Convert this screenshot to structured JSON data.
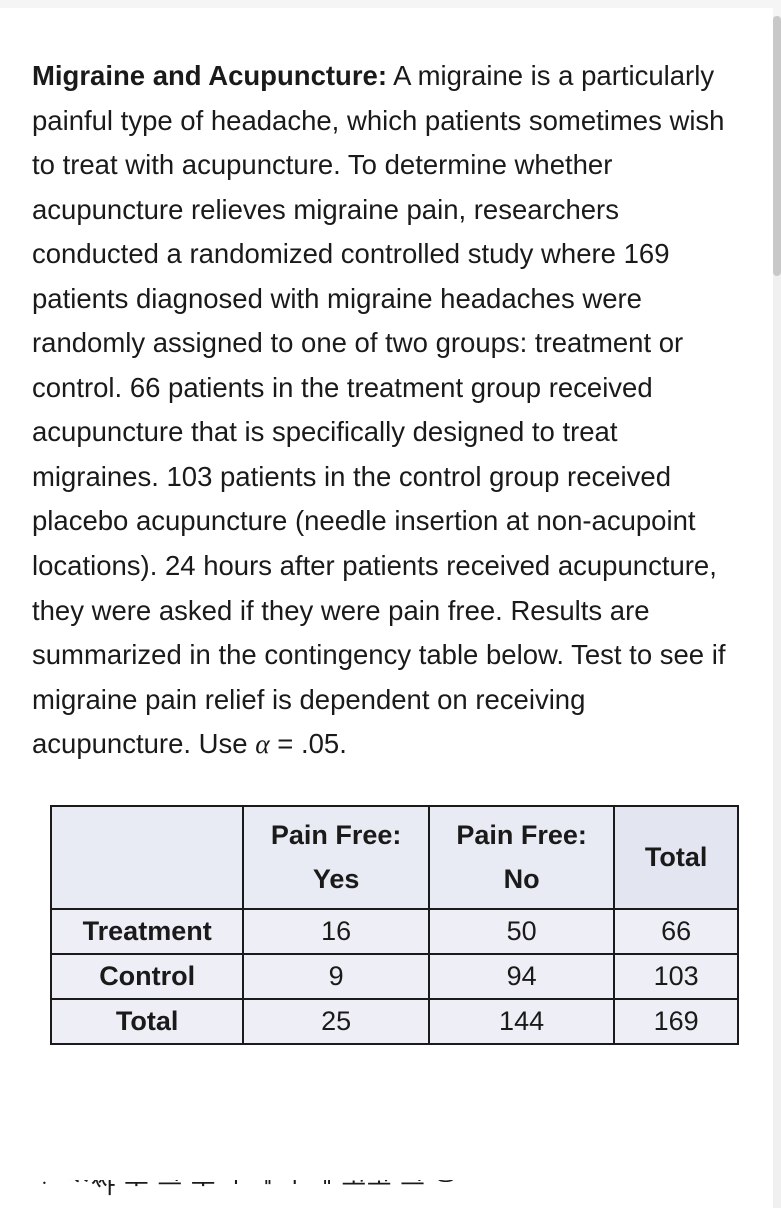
{
  "text": {
    "lead": "Migraine and Acupuncture:",
    "body_before_alpha": " A migraine is a particularly painful type of headache, which patients sometimes wish to treat with acupuncture. To determine whether acupuncture relieves migraine pain, researchers conducted a randomized controlled study where 169 patients diagnosed with migraine headaches were randomly assigned to one of two groups: treatment or control. 66 patients in the treatment group received acupuncture that is specifically designed to treat migraines. 103 patients in the control group received placebo acupuncture (needle insertion at non-acupoint locations). 24 hours after patients received acupuncture, they were asked if they were pain free. Results are summarized in the contingency table below. Test to see if migraine pain relief is dependent on receiving acupuncture. Use ",
    "alpha": "α",
    "body_after_alpha": " = .05."
  },
  "table": {
    "headers": {
      "corner": "",
      "col1_line1": "Pain Free:",
      "col1_line2": "Yes",
      "col2_line1": "Pain Free:",
      "col2_line2": "No",
      "col3": "Total"
    },
    "rows": [
      {
        "label": "Treatment",
        "yes": "16",
        "no": "50",
        "total": "66"
      },
      {
        "label": "Control",
        "yes": "9",
        "no": "94",
        "total": "103"
      },
      {
        "label": "Total",
        "yes": "25",
        "no": "144",
        "total": "169"
      }
    ],
    "style": {
      "border_color": "#1a1a1a",
      "header_bg": "#e9ebf4",
      "cell_bg": "#eeeff6",
      "font_size_pt": 20
    }
  },
  "cutoff_text": "ᆞ ᄿᄿᅣ       ᅮ ᆣ     ᅮᅵ         ᆘᅵ ᅵᅵ         ᆚᅶ       ᆣ   ᅌ"
}
